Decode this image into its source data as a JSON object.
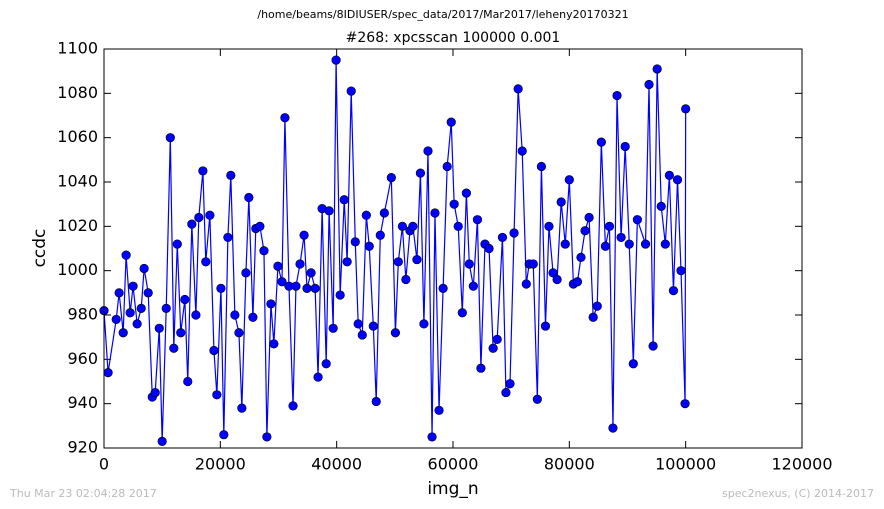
{
  "chart_data": {
    "type": "line",
    "suptitle": "/home/beams/8IDIUSER/spec_data/2017/Mar2017/leheny20170321",
    "title": "#268: xpcsscan 100000 0.001",
    "xlabel": "img_n",
    "ylabel": "ccdc",
    "color": "#0000ff",
    "marker": "circle",
    "xlim": [
      0,
      120000
    ],
    "xticks": [
      0,
      20000,
      40000,
      60000,
      80000,
      100000,
      120000
    ],
    "ylim": [
      920,
      1100
    ],
    "yticks": [
      920,
      940,
      960,
      980,
      1000,
      1020,
      1040,
      1060,
      1080,
      1100
    ],
    "x": [
      0,
      700,
      2100,
      2600,
      3300,
      3800,
      4500,
      5000,
      5700,
      6400,
      6900,
      7600,
      8300,
      8800,
      9500,
      10000,
      10700,
      11400,
      12000,
      12600,
      13200,
      13900,
      14400,
      15100,
      15800,
      16300,
      17000,
      17500,
      18200,
      18900,
      19400,
      20100,
      20600,
      21300,
      21800,
      22500,
      23200,
      23700,
      24400,
      24900,
      25600,
      26100,
      26800,
      27500,
      28000,
      28700,
      29200,
      29900,
      30600,
      31100,
      31800,
      32500,
      33000,
      33700,
      34400,
      34900,
      35600,
      36300,
      36800,
      37500,
      38200,
      38700,
      39400,
      39900,
      40600,
      41300,
      41800,
      42500,
      43200,
      43700,
      44400,
      45100,
      45600,
      46300,
      46800,
      47500,
      48200,
      49400,
      50100,
      50600,
      51300,
      51900,
      52600,
      53100,
      53800,
      54400,
      55000,
      55700,
      56400,
      56900,
      57600,
      58300,
      59000,
      59700,
      60200,
      60900,
      61600,
      62300,
      62800,
      63500,
      64200,
      64800,
      65500,
      66200,
      66900,
      67600,
      68500,
      69100,
      69800,
      70500,
      71200,
      71900,
      72600,
      73100,
      73800,
      74500,
      75200,
      75900,
      76500,
      77200,
      77900,
      78600,
      79300,
      80000,
      80700,
      81400,
      82000,
      82700,
      83400,
      84100,
      84800,
      85500,
      86200,
      86900,
      87500,
      88200,
      88900,
      89600,
      90300,
      91000,
      91700,
      93100,
      93700,
      94400,
      95100,
      95800,
      96500,
      97200,
      97900,
      98600,
      99200,
      99900,
      100000
    ],
    "values": [
      982,
      954,
      978,
      990,
      972,
      1007,
      981,
      993,
      976,
      983,
      1001,
      990,
      943,
      945,
      974,
      923,
      983,
      1060,
      965,
      1012,
      972,
      987,
      950,
      1021,
      980,
      1024,
      1045,
      1004,
      1025,
      964,
      944,
      992,
      926,
      1015,
      1043,
      980,
      972,
      938,
      999,
      1033,
      979,
      1019,
      1020,
      1009,
      925,
      985,
      967,
      1002,
      995,
      1069,
      993,
      939,
      993,
      1003,
      1016,
      992,
      999,
      992,
      952,
      1028,
      958,
      1027,
      974,
      1095,
      989,
      1032,
      1004,
      1081,
      1013,
      976,
      971,
      1025,
      1011,
      975,
      941,
      1016,
      1026,
      1042,
      972,
      1004,
      1020,
      996,
      1018,
      1020,
      1005,
      1044,
      976,
      1054,
      925,
      1026,
      937,
      992,
      1047,
      1067,
      1030,
      1020,
      981,
      1035,
      1003,
      993,
      1023,
      956,
      1012,
      1010,
      965,
      969,
      1015,
      945,
      949,
      1017,
      1082,
      1054,
      994,
      1003,
      1003,
      942,
      1047,
      975,
      1020,
      999,
      996,
      1031,
      1012,
      1041,
      994,
      995,
      1006,
      1018,
      1024,
      979,
      984,
      1058,
      1011,
      1020,
      929,
      1079,
      1015,
      1056,
      1012,
      958,
      1023,
      1012,
      1084,
      966,
      1091,
      1029,
      1012,
      1043,
      991,
      1041,
      1000,
      940,
      1073
    ]
  },
  "footer": {
    "left": "Thu Mar 23 02:04:28 2017",
    "right": "spec2nexus, (C) 2014-2017"
  }
}
